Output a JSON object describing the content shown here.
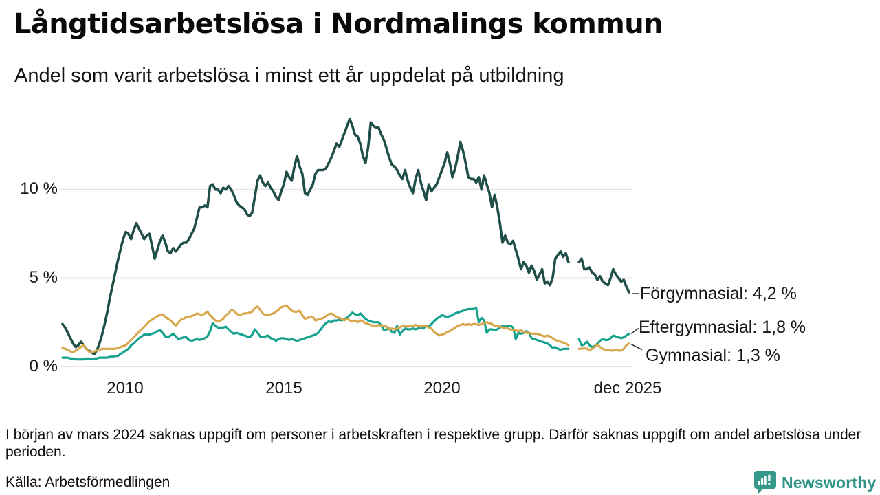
{
  "chart_data": {
    "type": "line",
    "title": "Långtidsarbetslösa i Nordmalings kommun",
    "subtitle": "Andel som varit arbetslösa i minst ett år uppdelat på utbildning",
    "x_unit": "month",
    "x_start": "2008-01",
    "x_end": "2025-12",
    "ylim": [
      0,
      14.5
    ],
    "grid": "horizontal",
    "gap_months": [
      "2024-02",
      "2024-03",
      "2024-04"
    ],
    "y_ticks": [
      {
        "value": 10,
        "label": "10 %"
      },
      {
        "value": 5,
        "label": "5 %"
      },
      {
        "value": 0,
        "label": "0 %"
      }
    ],
    "x_ticks": [
      {
        "index": 24,
        "label": "2010"
      },
      {
        "index": 84,
        "label": "2015"
      },
      {
        "index": 144,
        "label": "2020"
      },
      {
        "index": 215,
        "label": "dec 2025"
      }
    ],
    "series": [
      {
        "name": "Förgymnasial",
        "color": "#1f4f48",
        "end_value": 4.2,
        "end_label": "Förgymnasial: 4,2 %",
        "values": [
          2.4,
          2.2,
          1.9,
          1.6,
          1.3,
          1.1,
          1.2,
          1.4,
          1.2,
          1.0,
          0.9,
          0.8,
          0.7,
          0.9,
          1.3,
          1.8,
          2.4,
          3.1,
          3.9,
          4.6,
          5.3,
          6.0,
          6.6,
          7.2,
          7.6,
          7.5,
          7.2,
          7.7,
          8.1,
          7.8,
          7.5,
          7.2,
          7.4,
          7.5,
          6.8,
          6.1,
          6.6,
          7.1,
          7.4,
          7.0,
          6.5,
          6.4,
          6.7,
          6.5,
          6.7,
          6.9,
          7.0,
          7.0,
          7.2,
          7.5,
          7.8,
          8.4,
          9.0,
          9.0,
          9.1,
          9.0,
          10.2,
          10.3,
          10.0,
          10.0,
          9.8,
          10.1,
          10.0,
          10.2,
          10.0,
          9.7,
          9.3,
          9.1,
          9.0,
          8.9,
          8.6,
          8.5,
          8.7,
          9.6,
          10.5,
          10.8,
          10.4,
          10.2,
          10.4,
          10.1,
          9.9,
          9.6,
          9.4,
          9.9,
          10.3,
          11.0,
          10.7,
          10.5,
          11.3,
          11.9,
          11.3,
          10.9,
          9.8,
          9.7,
          10.0,
          10.3,
          10.9,
          11.1,
          11.1,
          11.1,
          11.2,
          11.5,
          11.8,
          12.2,
          12.6,
          12.4,
          12.8,
          13.2,
          13.6,
          14.0,
          13.6,
          13.1,
          13.0,
          12.6,
          11.9,
          11.5,
          12.4,
          13.8,
          13.6,
          13.5,
          13.5,
          13.1,
          12.8,
          12.3,
          11.8,
          11.4,
          11.3,
          11.1,
          10.8,
          10.6,
          11.1,
          10.5,
          10.1,
          9.8,
          10.6,
          11.1,
          10.4,
          9.9,
          9.4,
          10.3,
          9.9,
          10.1,
          10.3,
          10.7,
          11.1,
          11.5,
          12.1,
          11.5,
          10.7,
          11.2,
          11.9,
          12.7,
          12.2,
          11.5,
          10.7,
          10.6,
          10.6,
          10.4,
          10.7,
          10.0,
          10.8,
          10.3,
          9.8,
          9.0,
          9.7,
          9.0,
          8.1,
          7.0,
          7.4,
          7.0,
          6.9,
          7.1,
          6.6,
          6.1,
          5.5,
          5.9,
          5.7,
          5.3,
          5.7,
          5.4,
          4.9,
          5.2,
          5.5,
          4.7,
          4.8,
          4.6,
          5.0,
          6.1,
          6.3,
          6.5,
          6.2,
          6.4,
          5.9,
          null,
          null,
          null,
          5.9,
          6.1,
          5.5,
          5.5,
          5.6,
          5.3,
          5.2,
          4.9,
          5.1,
          4.8,
          4.7,
          4.6,
          5.0,
          5.5,
          5.2,
          5.0,
          4.8,
          4.9,
          4.5,
          4.2
        ]
      },
      {
        "name": "Eftergymnasial",
        "color": "#17a28e",
        "end_value": 1.8,
        "end_label": "Eftergymnasial: 1,8 %",
        "values": [
          0.5,
          0.5,
          0.5,
          0.45,
          0.45,
          0.4,
          0.4,
          0.4,
          0.4,
          0.45,
          0.45,
          0.4,
          0.45,
          0.45,
          0.5,
          0.5,
          0.5,
          0.5,
          0.55,
          0.55,
          0.6,
          0.6,
          0.7,
          0.8,
          0.9,
          1.0,
          1.2,
          1.3,
          1.45,
          1.6,
          1.7,
          1.8,
          1.8,
          1.8,
          1.85,
          1.9,
          2.0,
          2.05,
          1.9,
          1.7,
          1.65,
          1.75,
          1.85,
          1.7,
          1.55,
          1.6,
          1.65,
          1.65,
          1.5,
          1.45,
          1.5,
          1.55,
          1.5,
          1.55,
          1.6,
          1.7,
          2.0,
          2.45,
          2.3,
          2.2,
          2.2,
          2.2,
          2.25,
          2.1,
          1.95,
          1.85,
          1.9,
          1.85,
          1.8,
          1.75,
          1.7,
          1.65,
          1.8,
          2.1,
          1.9,
          1.7,
          1.65,
          1.7,
          1.75,
          1.6,
          1.55,
          1.45,
          1.55,
          1.6,
          1.6,
          1.55,
          1.5,
          1.55,
          1.5,
          1.45,
          1.5,
          1.55,
          1.6,
          1.65,
          1.7,
          1.75,
          1.8,
          1.9,
          2.1,
          2.3,
          2.45,
          2.55,
          2.5,
          2.6,
          2.6,
          2.65,
          2.6,
          2.7,
          2.75,
          2.9,
          3.05,
          2.95,
          2.9,
          3.0,
          2.85,
          2.7,
          2.6,
          2.55,
          2.5,
          2.5,
          2.5,
          2.3,
          2.05,
          2.1,
          2.15,
          1.95,
          1.9,
          2.3,
          1.8,
          2.0,
          2.15,
          2.1,
          2.1,
          2.15,
          2.1,
          2.15,
          2.2,
          2.15,
          2.3,
          2.25,
          2.4,
          2.55,
          2.7,
          2.8,
          2.9,
          2.85,
          2.8,
          2.85,
          2.9,
          3.0,
          3.05,
          3.1,
          3.15,
          3.2,
          3.25,
          3.25,
          3.25,
          3.3,
          2.5,
          2.75,
          2.6,
          1.9,
          2.1,
          2.1,
          2.05,
          2.1,
          2.2,
          2.3,
          2.25,
          2.3,
          2.3,
          2.2,
          1.55,
          1.9,
          1.85,
          1.9,
          2.0,
          1.9,
          1.6,
          1.55,
          1.5,
          1.45,
          1.4,
          1.35,
          1.3,
          1.2,
          1.05,
          1.1,
          1.0,
          0.95,
          1.0,
          1.0,
          1.0,
          null,
          null,
          null,
          1.55,
          1.2,
          1.25,
          1.4,
          1.2,
          1.1,
          1.15,
          1.3,
          1.45,
          1.55,
          1.5,
          1.5,
          1.6,
          1.75,
          1.7,
          1.65,
          1.6,
          1.65,
          1.75,
          1.85
        ]
      },
      {
        "name": "Gymnasial",
        "color": "#d8a84f",
        "end_value": 1.3,
        "end_label": "Gymnasial: 1,3 %",
        "values": [
          1.05,
          1.0,
          0.95,
          0.85,
          0.8,
          0.9,
          1.0,
          1.1,
          1.2,
          1.0,
          0.85,
          0.8,
          0.85,
          0.9,
          0.95,
          1.0,
          1.0,
          1.0,
          1.0,
          1.0,
          1.0,
          1.05,
          1.1,
          1.15,
          1.2,
          1.35,
          1.5,
          1.65,
          1.8,
          1.95,
          2.1,
          2.25,
          2.4,
          2.55,
          2.65,
          2.75,
          2.85,
          2.9,
          2.95,
          2.8,
          2.7,
          2.6,
          2.45,
          2.3,
          2.5,
          2.65,
          2.7,
          2.8,
          2.8,
          2.85,
          2.9,
          3.0,
          2.95,
          2.9,
          3.0,
          3.1,
          2.9,
          2.75,
          2.6,
          2.55,
          2.6,
          2.7,
          2.9,
          3.0,
          3.2,
          3.15,
          3.0,
          2.9,
          2.95,
          3.0,
          3.0,
          3.05,
          3.1,
          3.3,
          3.4,
          3.2,
          3.0,
          2.9,
          2.9,
          2.95,
          3.0,
          3.1,
          3.2,
          3.35,
          3.4,
          3.45,
          3.3,
          3.15,
          3.1,
          3.1,
          3.15,
          2.9,
          2.7,
          2.75,
          2.8,
          2.8,
          2.6,
          2.65,
          2.7,
          2.75,
          2.85,
          2.95,
          3.0,
          2.9,
          2.8,
          2.75,
          2.7,
          2.6,
          2.7,
          2.6,
          2.55,
          2.6,
          2.5,
          2.6,
          2.55,
          2.45,
          2.4,
          2.35,
          2.3,
          2.3,
          2.35,
          2.3,
          2.3,
          2.25,
          2.1,
          2.15,
          2.1,
          2.15,
          2.2,
          2.3,
          2.3,
          2.25,
          2.3,
          2.3,
          2.35,
          2.3,
          2.25,
          2.3,
          2.3,
          2.2,
          2.15,
          1.95,
          1.85,
          1.75,
          1.8,
          1.85,
          1.95,
          2.0,
          2.1,
          2.2,
          2.3,
          2.35,
          2.4,
          2.35,
          2.4,
          2.35,
          2.4,
          2.4,
          2.35,
          2.4,
          2.45,
          2.5,
          2.45,
          2.4,
          2.3,
          2.3,
          2.25,
          2.2,
          2.2,
          2.15,
          2.1,
          2.05,
          2.05,
          2.0,
          2.05,
          1.95,
          1.9,
          1.9,
          1.85,
          1.85,
          1.85,
          1.8,
          1.75,
          1.7,
          1.75,
          1.7,
          1.6,
          1.5,
          1.45,
          1.4,
          1.35,
          1.3,
          1.2,
          null,
          null,
          null,
          1.0,
          1.0,
          1.05,
          1.0,
          0.95,
          1.0,
          1.1,
          1.25,
          1.1,
          1.0,
          0.95,
          0.95,
          0.9,
          0.9,
          0.95,
          0.9,
          0.9,
          1.0,
          1.2,
          1.3
        ]
      }
    ]
  },
  "footer": {
    "note": "I början av mars 2024 saknas uppgift om personer i arbetskraften i respektive grupp. Därför saknas uppgift om andel arbetslösa under perioden.",
    "source": "Källa: Arbetsförmedlingen"
  },
  "logo": {
    "text": "Newsworthy",
    "color": "#2d9386",
    "icon_color": "#34988a"
  }
}
